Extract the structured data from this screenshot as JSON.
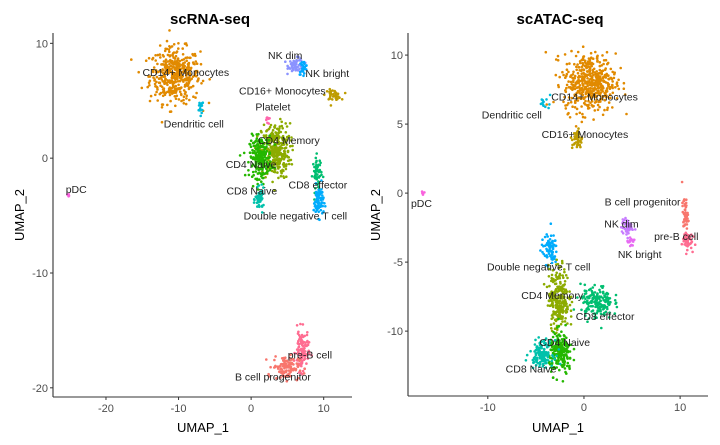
{
  "chart_data": [
    {
      "type": "scatter",
      "title": "scRNA-seq",
      "xlabel": "UMAP_1",
      "ylabel": "UMAP_2",
      "xlim": [
        -27.3,
        13.9
      ],
      "ylim": [
        -20.8,
        10.9
      ],
      "xticks": [
        -20,
        -10,
        0,
        10
      ],
      "yticks": [
        10,
        0,
        -10,
        -20
      ],
      "grid": false,
      "clusters": [
        {
          "name": "CD14+ Monocytes",
          "color": "#E18A00",
          "center": [
            -10.5,
            7.2
          ],
          "spread": [
            2.3,
            1.6
          ],
          "n": 420,
          "label_pos": [
            -9,
            7.5
          ]
        },
        {
          "name": "Dendritic cell",
          "color": "#00BBDA",
          "center": [
            -7,
            4.3
          ],
          "spread": [
            0.3,
            0.5
          ],
          "n": 15,
          "label_pos": [
            -7.9,
            3
          ]
        },
        {
          "name": "NK dim",
          "color": "#8B93FF",
          "center": [
            6.2,
            8.1
          ],
          "spread": [
            0.7,
            0.4
          ],
          "n": 60,
          "label_pos": [
            4.7,
            9
          ]
        },
        {
          "name": "NK bright",
          "color": "#00A9FF",
          "center": [
            7.2,
            7.9
          ],
          "spread": [
            0.4,
            0.4
          ],
          "n": 25,
          "label_pos": [
            10.5,
            7.4
          ]
        },
        {
          "name": "CD16+ Monocytes",
          "color": "#BE9C00",
          "center": [
            11.3,
            5.5
          ],
          "spread": [
            0.7,
            0.3
          ],
          "n": 40,
          "label_pos": [
            4.3,
            5.9
          ]
        },
        {
          "name": "Platelet",
          "color": "#FF65AC",
          "center": [
            2.2,
            3.3
          ],
          "spread": [
            0.2,
            0.5
          ],
          "n": 10,
          "label_pos": [
            3.0,
            4.5
          ]
        },
        {
          "name": "CD4 Memory",
          "color": "#8CAB00",
          "center": [
            3.4,
            0.6
          ],
          "spread": [
            1.3,
            1.6
          ],
          "n": 320,
          "label_pos": [
            5.2,
            1.6
          ]
        },
        {
          "name": "CD4 Naive",
          "color": "#24B700",
          "center": [
            1.3,
            0.1
          ],
          "spread": [
            1.0,
            1.2
          ],
          "n": 220,
          "label_pos": [
            0,
            -0.5
          ]
        },
        {
          "name": "CD8 effector",
          "color": "#00BE70",
          "center": [
            9.1,
            -1.4
          ],
          "spread": [
            0.4,
            1.0
          ],
          "n": 60,
          "label_pos": [
            9.2,
            -2.3
          ]
        },
        {
          "name": "Double negative T cell",
          "color": "#00ACFC",
          "center": [
            9.3,
            -3.7
          ],
          "spread": [
            0.45,
            0.9
          ],
          "n": 80,
          "label_pos": [
            6.1,
            -5
          ]
        },
        {
          "name": "CD8 Naive",
          "color": "#00C1AB",
          "center": [
            1.2,
            -3.6
          ],
          "spread": [
            0.4,
            0.6
          ],
          "n": 50,
          "label_pos": [
            0.1,
            -2.8
          ]
        },
        {
          "name": "pDC",
          "color": "#F962DD",
          "center": [
            -25.2,
            -3.3
          ],
          "spread": [
            0.2,
            0.2
          ],
          "n": 6,
          "label_pos": [
            -24.1,
            -2.7
          ]
        },
        {
          "name": "pre-B cell",
          "color": "#FF6C91",
          "center": [
            7.0,
            -16.8
          ],
          "spread": [
            0.6,
            1.2
          ],
          "n": 110,
          "label_pos": [
            8.1,
            -17.1
          ]
        },
        {
          "name": "B cell progenitor",
          "color": "#F8766D",
          "center": [
            4.8,
            -18.2
          ],
          "spread": [
            1.2,
            0.7
          ],
          "n": 110,
          "label_pos": [
            3,
            -19
          ]
        }
      ]
    },
    {
      "type": "scatter",
      "title": "scATAC-seq",
      "xlabel": "UMAP_1",
      "ylabel": "UMAP_2",
      "xlim": [
        -18.3,
        12.9
      ],
      "ylim": [
        -14.7,
        11.6
      ],
      "xticks": [
        -10,
        0,
        10
      ],
      "yticks": [
        10,
        5,
        0,
        -5,
        -10
      ],
      "grid": false,
      "clusters": [
        {
          "name": "CD14+ Monocytes",
          "color": "#E18A00",
          "center": [
            0.6,
            8.0
          ],
          "spread": [
            1.8,
            1.4
          ],
          "n": 480,
          "label_pos": [
            1.1,
            7
          ]
        },
        {
          "name": "Dendritic cell",
          "color": "#00BBDA",
          "center": [
            -4,
            6.5
          ],
          "spread": [
            0.4,
            0.3
          ],
          "n": 12,
          "label_pos": [
            -7.5,
            5.7
          ]
        },
        {
          "name": "CD16+ Monocytes",
          "color": "#BE9C00",
          "center": [
            -0.7,
            3.9
          ],
          "spread": [
            0.35,
            0.5
          ],
          "n": 45,
          "label_pos": [
            0.1,
            4.3
          ]
        },
        {
          "name": "pDC",
          "color": "#F962DD",
          "center": [
            -16.8,
            0.1
          ],
          "spread": [
            0.15,
            0.15
          ],
          "n": 5,
          "label_pos": [
            -16.9,
            -0.7
          ]
        },
        {
          "name": "B cell progenitor",
          "color": "#F8766D",
          "center": [
            10.5,
            -1.6
          ],
          "spread": [
            0.2,
            0.9
          ],
          "n": 45,
          "label_pos": [
            6.1,
            -0.6
          ]
        },
        {
          "name": "NK dim",
          "color": "#C77CFF",
          "center": [
            4.5,
            -2.5
          ],
          "spread": [
            0.4,
            0.4
          ],
          "n": 50,
          "label_pos": [
            3.9,
            -2.2
          ]
        },
        {
          "name": "NK bright",
          "color": "#E76BF3",
          "center": [
            4.9,
            -3.5
          ],
          "spread": [
            0.25,
            0.35
          ],
          "n": 15,
          "label_pos": [
            5.8,
            -4.4
          ]
        },
        {
          "name": "pre-B cell",
          "color": "#FF6C91",
          "center": [
            10.7,
            -3.4
          ],
          "spread": [
            0.35,
            0.45
          ],
          "n": 55,
          "label_pos": [
            9.6,
            -3.1
          ]
        },
        {
          "name": "Double negative T cell",
          "color": "#00ACFC",
          "center": [
            -3.6,
            -4.1
          ],
          "spread": [
            0.55,
            0.7
          ],
          "n": 80,
          "label_pos": [
            -4.7,
            -5.3
          ]
        },
        {
          "name": "CD4 Memory",
          "color": "#8CAB00",
          "center": [
            -2.6,
            -7.6
          ],
          "spread": [
            0.7,
            1.5
          ],
          "n": 260,
          "label_pos": [
            -3.3,
            -7.4
          ]
        },
        {
          "name": "CD8 effector",
          "color": "#00BE70",
          "center": [
            1.3,
            -7.9
          ],
          "spread": [
            1.1,
            0.8
          ],
          "n": 170,
          "label_pos": [
            2.2,
            -8.9
          ]
        },
        {
          "name": "CD4 Naive",
          "color": "#24B700",
          "center": [
            -2.4,
            -11.6
          ],
          "spread": [
            0.8,
            1.0
          ],
          "n": 200,
          "label_pos": [
            -2,
            -10.8
          ]
        },
        {
          "name": "CD8 Naive",
          "color": "#00C1AB",
          "center": [
            -4.4,
            -11.6
          ],
          "spread": [
            0.8,
            0.6
          ],
          "n": 130,
          "label_pos": [
            -5.5,
            -12.7
          ]
        }
      ]
    }
  ]
}
